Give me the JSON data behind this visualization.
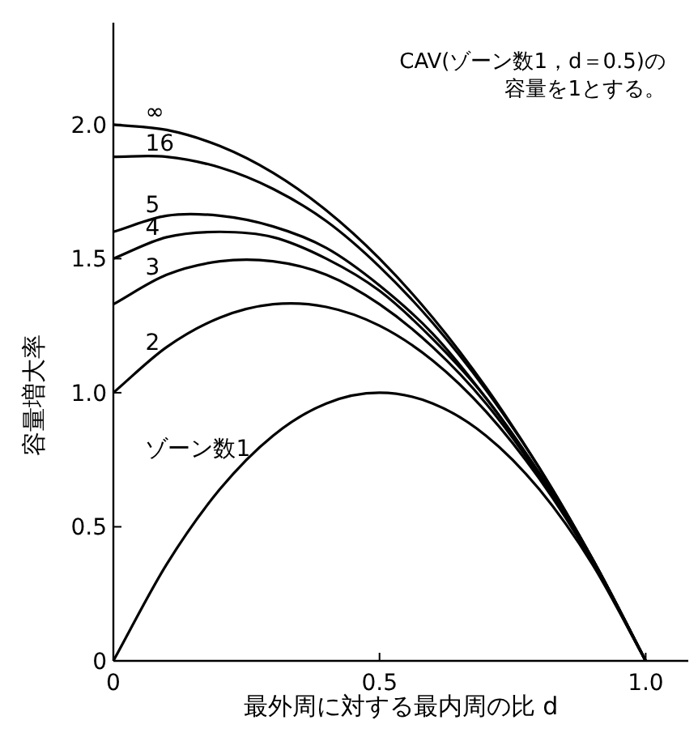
{
  "chart_data": {
    "type": "line",
    "xlabel": "最外周に対する最内周の比 d",
    "ylabel": "容量増大率",
    "annotations": [
      "CAV(ゾーン数1，d＝0.5)の",
      "容量を1とする。"
    ],
    "x": [
      0,
      0.1,
      0.2,
      0.3,
      0.4,
      0.5,
      0.6,
      0.7,
      0.8,
      0.9,
      1.0
    ],
    "xlim": [
      0,
      1.08
    ],
    "ylim": [
      0,
      2.38
    ],
    "xticks": [
      0,
      0.5,
      {
        "value": 1.0,
        "label": "1.0"
      }
    ],
    "yticks": [
      0,
      0.5,
      {
        "value": 1.0,
        "label": "1.0"
      },
      1.5,
      {
        "value": 2.0,
        "label": "2.0"
      }
    ],
    "grid": false,
    "legend": false,
    "marker": "none",
    "line_style": "solid",
    "series": [
      {
        "name": "∞",
        "color": "#000000",
        "values": [
          2.0,
          1.98,
          1.92,
          1.82,
          1.68,
          1.5,
          1.28,
          1.02,
          0.72,
          0.38,
          0
        ]
      },
      {
        "name": "16",
        "color": "#000000",
        "values": [
          1.88,
          1.88,
          1.84,
          1.76,
          1.64,
          1.47,
          1.26,
          1.01,
          0.72,
          0.38,
          0
        ]
      },
      {
        "name": "5",
        "color": "#000000",
        "values": [
          1.6,
          1.66,
          1.66,
          1.62,
          1.54,
          1.4,
          1.22,
          0.98,
          0.7,
          0.38,
          0
        ]
      },
      {
        "name": "4",
        "color": "#000000",
        "values": [
          1.5,
          1.58,
          1.6,
          1.58,
          1.5,
          1.38,
          1.2,
          0.98,
          0.7,
          0.38,
          0
        ]
      },
      {
        "name": "3",
        "color": "#000000",
        "values": [
          1.33,
          1.44,
          1.49,
          1.49,
          1.44,
          1.33,
          1.17,
          0.96,
          0.69,
          0.37,
          0
        ]
      },
      {
        "name": "2",
        "color": "#000000",
        "values": [
          1.0,
          1.17,
          1.28,
          1.33,
          1.32,
          1.25,
          1.12,
          0.93,
          0.68,
          0.37,
          0
        ]
      },
      {
        "name": "ゾーン数1",
        "color": "#000000",
        "values": [
          0,
          0.36,
          0.64,
          0.84,
          0.96,
          1.0,
          0.96,
          0.84,
          0.64,
          0.36,
          0
        ]
      }
    ]
  }
}
